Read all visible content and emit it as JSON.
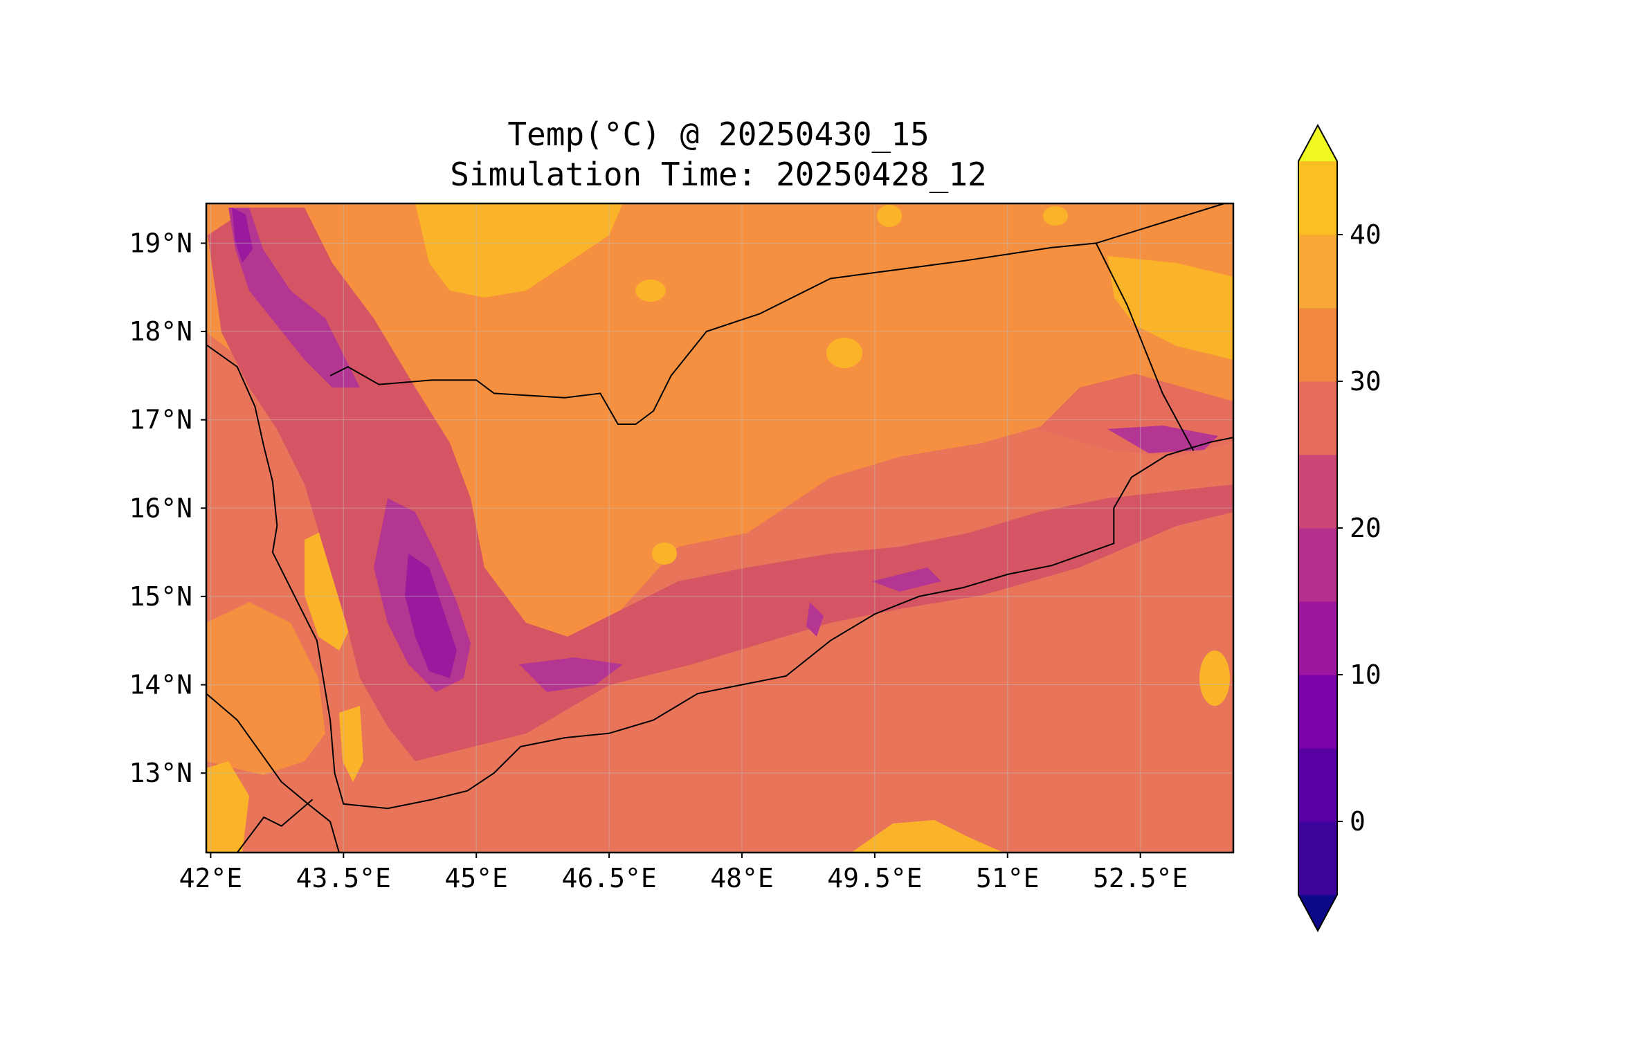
{
  "title": {
    "line1": "Temp(°C) @ 20250430_15",
    "line2": "Simulation Time: 20250428_12"
  },
  "map": {
    "region": "Yemen",
    "variable": "Temp(°C)",
    "lon_range": [
      41.95,
      53.55
    ],
    "lat_range": [
      12.1,
      19.45
    ],
    "x_ticks": [
      {
        "value": 42.0,
        "label": "42°E"
      },
      {
        "value": 43.5,
        "label": "43.5°E"
      },
      {
        "value": 45.0,
        "label": "45°E"
      },
      {
        "value": 46.5,
        "label": "46.5°E"
      },
      {
        "value": 48.0,
        "label": "48°E"
      },
      {
        "value": 49.5,
        "label": "49.5°E"
      },
      {
        "value": 51.0,
        "label": "51°E"
      },
      {
        "value": 52.5,
        "label": "52.5°E"
      }
    ],
    "y_ticks": [
      {
        "value": 19,
        "label": "19°N"
      },
      {
        "value": 18,
        "label": "18°N"
      },
      {
        "value": 17,
        "label": "17°N"
      },
      {
        "value": 16,
        "label": "16°N"
      },
      {
        "value": 15,
        "label": "15°N"
      },
      {
        "value": 14,
        "label": "14°N"
      },
      {
        "value": 13,
        "label": "13°N"
      }
    ],
    "gridlines": true,
    "coastline": [
      [
        41.95,
        17.85
      ],
      [
        42.3,
        17.6
      ],
      [
        42.5,
        17.15
      ],
      [
        42.6,
        16.7
      ],
      [
        42.7,
        16.3
      ],
      [
        42.75,
        15.8
      ],
      [
        42.7,
        15.5
      ],
      [
        42.95,
        15.0
      ],
      [
        43.2,
        14.5
      ],
      [
        43.3,
        13.9
      ],
      [
        43.35,
        13.6
      ],
      [
        43.4,
        13.0
      ],
      [
        43.5,
        12.65
      ],
      [
        44.0,
        12.6
      ],
      [
        44.5,
        12.7
      ],
      [
        44.9,
        12.8
      ],
      [
        45.2,
        13.0
      ],
      [
        45.5,
        13.3
      ],
      [
        46.0,
        13.4
      ],
      [
        46.5,
        13.45
      ],
      [
        47.0,
        13.6
      ],
      [
        47.5,
        13.9
      ],
      [
        48.0,
        14.0
      ],
      [
        48.5,
        14.1
      ],
      [
        49.0,
        14.5
      ],
      [
        49.5,
        14.8
      ],
      [
        50.0,
        15.0
      ],
      [
        50.5,
        15.1
      ],
      [
        51.0,
        15.25
      ],
      [
        51.5,
        15.35
      ],
      [
        52.2,
        15.6
      ],
      [
        52.2,
        16.0
      ],
      [
        52.4,
        16.35
      ],
      [
        52.8,
        16.6
      ],
      [
        53.3,
        16.75
      ],
      [
        53.55,
        16.8
      ]
    ],
    "coastline_africa": [
      [
        41.95,
        13.9
      ],
      [
        42.3,
        13.6
      ],
      [
        42.55,
        13.25
      ],
      [
        42.8,
        12.9
      ],
      [
        43.1,
        12.65
      ],
      [
        43.35,
        12.45
      ],
      [
        43.45,
        12.1
      ]
    ],
    "border_sa": [
      [
        43.35,
        17.5
      ],
      [
        43.55,
        17.6
      ],
      [
        43.9,
        17.4
      ],
      [
        44.5,
        17.45
      ],
      [
        45.0,
        17.45
      ],
      [
        45.2,
        17.3
      ],
      [
        46.0,
        17.25
      ],
      [
        46.4,
        17.3
      ],
      [
        46.6,
        16.95
      ],
      [
        46.8,
        16.95
      ],
      [
        47.0,
        17.1
      ],
      [
        47.2,
        17.5
      ],
      [
        47.6,
        18.0
      ],
      [
        48.2,
        18.2
      ],
      [
        49.0,
        18.6
      ],
      [
        50.5,
        18.8
      ],
      [
        51.5,
        18.95
      ],
      [
        52.0,
        19.0
      ],
      [
        53.45,
        19.45
      ]
    ],
    "border_oman": [
      [
        52.0,
        19.0
      ],
      [
        52.35,
        18.3
      ],
      [
        52.75,
        17.3
      ],
      [
        53.1,
        16.65
      ]
    ],
    "border_africa": [
      [
        42.3,
        12.1
      ],
      [
        42.6,
        12.5
      ],
      [
        42.8,
        12.4
      ],
      [
        43.15,
        12.7
      ]
    ]
  },
  "colorbar": {
    "levels": [
      -5,
      0,
      5,
      10,
      15,
      20,
      25,
      30,
      35,
      40,
      45
    ],
    "colors": [
      "#1a0a8a",
      "#3b049a",
      "#5a01a5",
      "#7a02a8",
      "#9c179e",
      "#b52f8c",
      "#cc4778",
      "#e66c5c",
      "#f0893f",
      "#f7a837",
      "#fbbf24",
      "#f0e626"
    ],
    "extend_low_color": "#0d0887",
    "extend_high_color": "#f0f921",
    "tick_labels": [
      {
        "value": 0,
        "label": "0"
      },
      {
        "value": 10,
        "label": "10"
      },
      {
        "value": 20,
        "label": "20"
      },
      {
        "value": 30,
        "label": "30"
      },
      {
        "value": 40,
        "label": "40"
      }
    ]
  }
}
